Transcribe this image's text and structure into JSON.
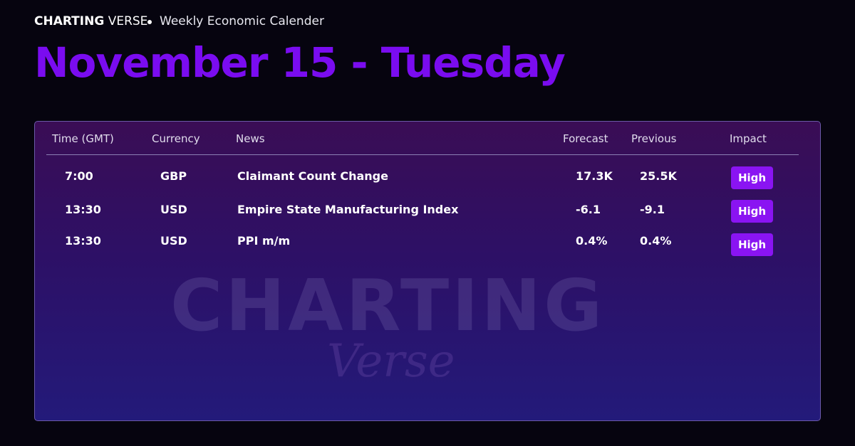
{
  "header": {
    "brand_bold": "CHARTING",
    "brand_light": "VERSE",
    "subtitle": "Weekly Economic Calender",
    "title": "November 15 - Tuesday"
  },
  "table": {
    "columns": [
      "Time (GMT)",
      "Currency",
      "News",
      "Forecast",
      "Previous",
      "Impact"
    ],
    "rows": [
      [
        "7:00",
        "GBP",
        "Claimant Count Change",
        "17.3K",
        "25.5K",
        "High"
      ],
      [
        "13:30",
        "USD",
        "Empire State Manufacturing Index",
        "-6.1",
        "-9.1",
        "High"
      ],
      [
        "13:30",
        "USD",
        "PPI m/m",
        "0.4%",
        "0.4%",
        "High"
      ]
    ]
  },
  "watermark": {
    "line1": "CHARTING",
    "line2": "Verse"
  }
}
